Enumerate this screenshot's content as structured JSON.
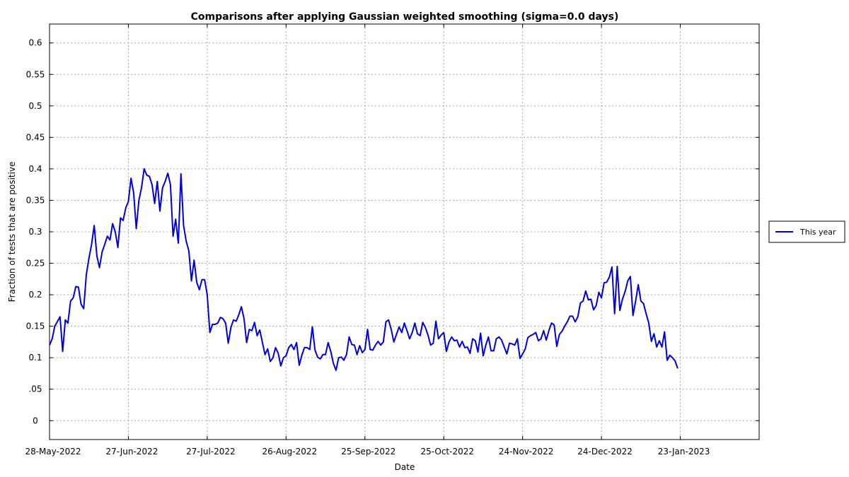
{
  "chart_data": {
    "type": "line",
    "title": "Comparisons after applying Gaussian weighted smoothing (sigma=0.0 days)",
    "xlabel": "Date",
    "ylabel": "Fraction of tests that are positive",
    "xlim": [
      "2022-05-28",
      "2023-02-22"
    ],
    "ylim": [
      -0.03,
      0.63
    ],
    "grid": true,
    "legend_position": "right",
    "x_ticks": [
      "28-May-2022",
      "27-Jun-2022",
      "27-Jul-2022",
      "26-Aug-2022",
      "25-Sep-2022",
      "25-Oct-2022",
      "24-Nov-2022",
      "24-Dec-2022",
      "23-Jan-2023"
    ],
    "y_ticks": [
      {
        "value": 0,
        "label": "0"
      },
      {
        "value": 0.05,
        "label": ".05"
      },
      {
        "value": 0.1,
        "label": "0.1"
      },
      {
        "value": 0.15,
        "label": "0.15"
      },
      {
        "value": 0.2,
        "label": "0.2"
      },
      {
        "value": 0.25,
        "label": "0.25"
      },
      {
        "value": 0.3,
        "label": "0.3"
      },
      {
        "value": 0.35,
        "label": "0.35"
      },
      {
        "value": 0.4,
        "label": "0.4"
      },
      {
        "value": 0.45,
        "label": "0.45"
      },
      {
        "value": 0.5,
        "label": "0.5"
      },
      {
        "value": 0.55,
        "label": "0.55"
      },
      {
        "value": 0.6,
        "label": "0.6"
      }
    ],
    "series": [
      {
        "name": "This year",
        "color": "#0000dd",
        "start_date": "2022-05-28",
        "points": [
          [
            0,
            0.12
          ],
          [
            1,
            0.13
          ],
          [
            2,
            0.15
          ],
          [
            4,
            0.165
          ],
          [
            5,
            0.11
          ],
          [
            6,
            0.16
          ],
          [
            7,
            0.155
          ],
          [
            8,
            0.19
          ],
          [
            9,
            0.195
          ],
          [
            10,
            0.213
          ],
          [
            11,
            0.212
          ],
          [
            12,
            0.185
          ],
          [
            13,
            0.178
          ],
          [
            14,
            0.232
          ],
          [
            15,
            0.258
          ],
          [
            16,
            0.28
          ],
          [
            17,
            0.31
          ],
          [
            18,
            0.262
          ],
          [
            19,
            0.243
          ],
          [
            20,
            0.268
          ],
          [
            21,
            0.28
          ],
          [
            22,
            0.293
          ],
          [
            23,
            0.287
          ],
          [
            24,
            0.313
          ],
          [
            25,
            0.3
          ],
          [
            26,
            0.275
          ],
          [
            27,
            0.322
          ],
          [
            28,
            0.318
          ],
          [
            29,
            0.338
          ],
          [
            30,
            0.348
          ],
          [
            31,
            0.385
          ],
          [
            32,
            0.362
          ],
          [
            33,
            0.305
          ],
          [
            34,
            0.35
          ],
          [
            35,
            0.37
          ],
          [
            36,
            0.4
          ],
          [
            37,
            0.39
          ],
          [
            38,
            0.388
          ],
          [
            39,
            0.375
          ],
          [
            40,
            0.345
          ],
          [
            41,
            0.38
          ],
          [
            42,
            0.333
          ],
          [
            43,
            0.37
          ],
          [
            44,
            0.38
          ],
          [
            45,
            0.393
          ],
          [
            46,
            0.375
          ],
          [
            47,
            0.293
          ],
          [
            48,
            0.32
          ],
          [
            49,
            0.282
          ],
          [
            50,
            0.392
          ],
          [
            51,
            0.31
          ],
          [
            52,
            0.285
          ],
          [
            53,
            0.27
          ],
          [
            54,
            0.222
          ],
          [
            55,
            0.255
          ],
          [
            56,
            0.22
          ],
          [
            57,
            0.208
          ],
          [
            58,
            0.224
          ],
          [
            59,
            0.224
          ],
          [
            60,
            0.2
          ],
          [
            61,
            0.14
          ],
          [
            62,
            0.153
          ],
          [
            63,
            0.153
          ],
          [
            64,
            0.155
          ],
          [
            65,
            0.164
          ],
          [
            66,
            0.162
          ],
          [
            67,
            0.155
          ],
          [
            68,
            0.123
          ],
          [
            69,
            0.148
          ],
          [
            70,
            0.16
          ],
          [
            71,
            0.158
          ],
          [
            72,
            0.168
          ],
          [
            73,
            0.181
          ],
          [
            74,
            0.162
          ],
          [
            75,
            0.124
          ],
          [
            76,
            0.145
          ],
          [
            77,
            0.143
          ],
          [
            78,
            0.156
          ],
          [
            79,
            0.135
          ],
          [
            80,
            0.144
          ],
          [
            81,
            0.124
          ],
          [
            82,
            0.105
          ],
          [
            83,
            0.114
          ],
          [
            84,
            0.094
          ],
          [
            85,
            0.1
          ],
          [
            86,
            0.116
          ],
          [
            87,
            0.107
          ],
          [
            88,
            0.087
          ],
          [
            89,
            0.1
          ],
          [
            90,
            0.103
          ],
          [
            91,
            0.116
          ],
          [
            92,
            0.121
          ],
          [
            93,
            0.113
          ],
          [
            94,
            0.124
          ],
          [
            95,
            0.088
          ],
          [
            96,
            0.104
          ],
          [
            97,
            0.116
          ],
          [
            98,
            0.116
          ],
          [
            99,
            0.113
          ],
          [
            100,
            0.149
          ],
          [
            101,
            0.112
          ],
          [
            102,
            0.101
          ],
          [
            103,
            0.098
          ],
          [
            104,
            0.105
          ],
          [
            105,
            0.105
          ],
          [
            106,
            0.124
          ],
          [
            107,
            0.11
          ],
          [
            108,
            0.091
          ],
          [
            109,
            0.08
          ],
          [
            110,
            0.1
          ],
          [
            111,
            0.101
          ],
          [
            112,
            0.096
          ],
          [
            113,
            0.105
          ],
          [
            114,
            0.133
          ],
          [
            115,
            0.121
          ],
          [
            116,
            0.12
          ],
          [
            117,
            0.105
          ],
          [
            118,
            0.119
          ],
          [
            119,
            0.108
          ],
          [
            120,
            0.113
          ],
          [
            121,
            0.145
          ],
          [
            122,
            0.113
          ],
          [
            123,
            0.112
          ],
          [
            124,
            0.12
          ],
          [
            125,
            0.126
          ],
          [
            126,
            0.12
          ],
          [
            127,
            0.125
          ],
          [
            128,
            0.157
          ],
          [
            129,
            0.16
          ],
          [
            130,
            0.145
          ],
          [
            131,
            0.125
          ],
          [
            132,
            0.137
          ],
          [
            133,
            0.149
          ],
          [
            134,
            0.14
          ],
          [
            135,
            0.155
          ],
          [
            136,
            0.143
          ],
          [
            137,
            0.13
          ],
          [
            138,
            0.14
          ],
          [
            139,
            0.155
          ],
          [
            140,
            0.138
          ],
          [
            141,
            0.135
          ],
          [
            142,
            0.156
          ],
          [
            143,
            0.148
          ],
          [
            144,
            0.136
          ],
          [
            145,
            0.12
          ],
          [
            146,
            0.123
          ],
          [
            147,
            0.158
          ],
          [
            148,
            0.13
          ],
          [
            149,
            0.136
          ],
          [
            150,
            0.14
          ],
          [
            151,
            0.11
          ],
          [
            152,
            0.125
          ],
          [
            153,
            0.133
          ],
          [
            154,
            0.127
          ],
          [
            155,
            0.128
          ],
          [
            156,
            0.117
          ],
          [
            157,
            0.126
          ],
          [
            158,
            0.116
          ],
          [
            159,
            0.117
          ],
          [
            160,
            0.107
          ],
          [
            161,
            0.13
          ],
          [
            162,
            0.127
          ],
          [
            163,
            0.109
          ],
          [
            164,
            0.139
          ],
          [
            165,
            0.103
          ],
          [
            166,
            0.12
          ],
          [
            167,
            0.133
          ],
          [
            168,
            0.111
          ],
          [
            169,
            0.111
          ],
          [
            170,
            0.13
          ],
          [
            171,
            0.133
          ],
          [
            172,
            0.128
          ],
          [
            173,
            0.117
          ],
          [
            174,
            0.106
          ],
          [
            175,
            0.123
          ],
          [
            176,
            0.122
          ],
          [
            177,
            0.12
          ],
          [
            178,
            0.13
          ],
          [
            179,
            0.099
          ],
          [
            180,
            0.106
          ],
          [
            181,
            0.114
          ],
          [
            182,
            0.132
          ],
          [
            183,
            0.135
          ],
          [
            184,
            0.137
          ],
          [
            185,
            0.14
          ],
          [
            186,
            0.127
          ],
          [
            187,
            0.13
          ],
          [
            188,
            0.143
          ],
          [
            189,
            0.128
          ],
          [
            190,
            0.143
          ],
          [
            191,
            0.155
          ],
          [
            192,
            0.152
          ],
          [
            193,
            0.118
          ],
          [
            194,
            0.137
          ],
          [
            195,
            0.142
          ],
          [
            196,
            0.15
          ],
          [
            197,
            0.157
          ],
          [
            198,
            0.166
          ],
          [
            199,
            0.166
          ],
          [
            200,
            0.157
          ],
          [
            201,
            0.165
          ],
          [
            202,
            0.187
          ],
          [
            203,
            0.19
          ],
          [
            204,
            0.206
          ],
          [
            205,
            0.192
          ],
          [
            206,
            0.193
          ],
          [
            207,
            0.176
          ],
          [
            208,
            0.183
          ],
          [
            209,
            0.204
          ],
          [
            210,
            0.195
          ],
          [
            211,
            0.219
          ],
          [
            212,
            0.22
          ],
          [
            213,
            0.228
          ],
          [
            214,
            0.244
          ],
          [
            215,
            0.17
          ],
          [
            216,
            0.245
          ],
          [
            217,
            0.175
          ],
          [
            218,
            0.193
          ],
          [
            219,
            0.205
          ],
          [
            220,
            0.222
          ],
          [
            221,
            0.229
          ],
          [
            222,
            0.167
          ],
          [
            223,
            0.19
          ],
          [
            224,
            0.216
          ],
          [
            225,
            0.19
          ],
          [
            226,
            0.186
          ],
          [
            227,
            0.17
          ],
          [
            228,
            0.155
          ],
          [
            229,
            0.126
          ],
          [
            230,
            0.138
          ],
          [
            231,
            0.117
          ],
          [
            232,
            0.127
          ],
          [
            233,
            0.117
          ],
          [
            234,
            0.141
          ],
          [
            235,
            0.096
          ],
          [
            236,
            0.104
          ],
          [
            237,
            0.1
          ],
          [
            238,
            0.095
          ],
          [
            239,
            0.083
          ]
        ]
      }
    ]
  }
}
